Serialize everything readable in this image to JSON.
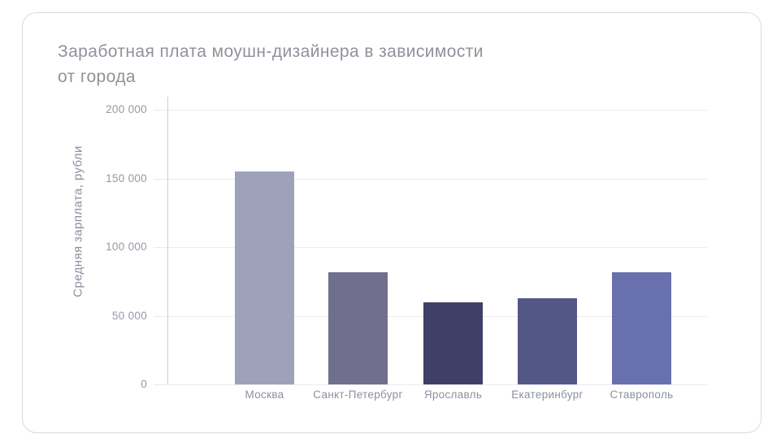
{
  "card": {
    "background": "#ffffff",
    "border_color": "#d9dade"
  },
  "chart_data": {
    "type": "bar",
    "title": "Заработная плата моушн-дизайнера в зависимости от города",
    "title_lines": [
      "Заработная плата моушн-дизайнера в зависимости",
      "от города"
    ],
    "ylabel": "Средняя зарплата, рубли",
    "xlabel": "",
    "categories": [
      "Москва",
      "Санкт-Петербург",
      "Ярославль",
      "Екатеринбург",
      "Ставрополь"
    ],
    "values": [
      155000,
      82000,
      60000,
      63000,
      82000
    ],
    "bar_colors": [
      "#9ea1b9",
      "#706f8d",
      "#403f67",
      "#535786",
      "#6871ae"
    ],
    "ylim": [
      0,
      210000
    ],
    "yticks": [
      0,
      50000,
      100000,
      150000,
      200000
    ],
    "ytick_labels": [
      "0",
      "50 000",
      "100 000",
      "150 000",
      "200 000"
    ],
    "grid": true,
    "legend": "none",
    "colors": {
      "title_text": "#8f929a",
      "axis_text": "#9698a6",
      "axis_line": "#cbccd6",
      "grid_line": "#ebebf0"
    }
  }
}
